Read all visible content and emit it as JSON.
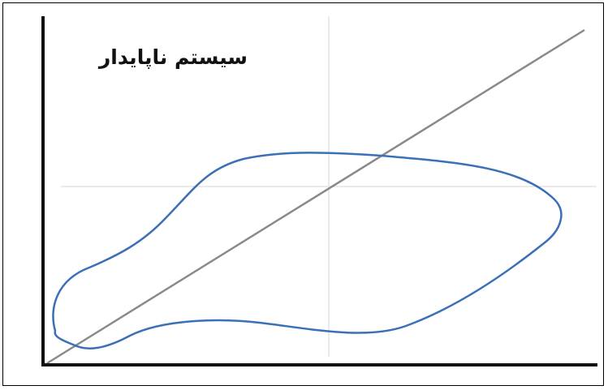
{
  "diagram": {
    "title": "سیستم ناپایدار",
    "colors": {
      "axes": "#111111",
      "diagonal_line": "#8a8a8a",
      "loop_curve": "#3b6fb8",
      "faint_grid": "#eaeaea",
      "frame_border": "#000000"
    },
    "elements": {
      "vertical_axis": "y-axis",
      "horizontal_axis": "x-axis",
      "reference_line": "diagonal-line",
      "closed_curve": "instability-loop"
    }
  }
}
